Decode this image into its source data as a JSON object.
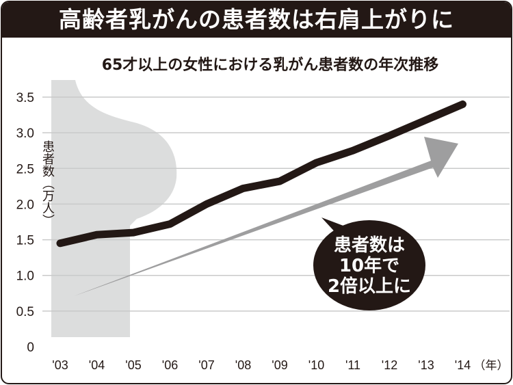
{
  "chart_data": {
    "type": "line",
    "title": "高齢者乳がんの患者数は右肩上がりに",
    "subtitle": "65才以上の女性における乳がん患者数の年次推移",
    "ylabel": "患者数（万人）",
    "xlabel": "（年）",
    "categories": [
      "'03",
      "'04",
      "'05",
      "'06",
      "'07",
      "'08",
      "'09",
      "'10",
      "'11",
      "'12",
      "'13",
      "'14"
    ],
    "values": [
      1.45,
      1.57,
      1.6,
      1.72,
      2.0,
      2.22,
      2.32,
      2.58,
      2.75,
      2.96,
      3.18,
      3.4
    ],
    "yticks": [
      "0",
      "0.5",
      "1.0",
      "1.5",
      "2.0",
      "2.5",
      "3.0",
      "3.5"
    ],
    "ylim": [
      0,
      3.5
    ],
    "grid": true,
    "annotation": [
      "患者数は",
      "10年で",
      "2倍以上に"
    ],
    "colors": {
      "line": "#231815",
      "arrow": "#9e9e9f",
      "silhouette": "#dcdddd",
      "grid": "#c9caca"
    }
  }
}
